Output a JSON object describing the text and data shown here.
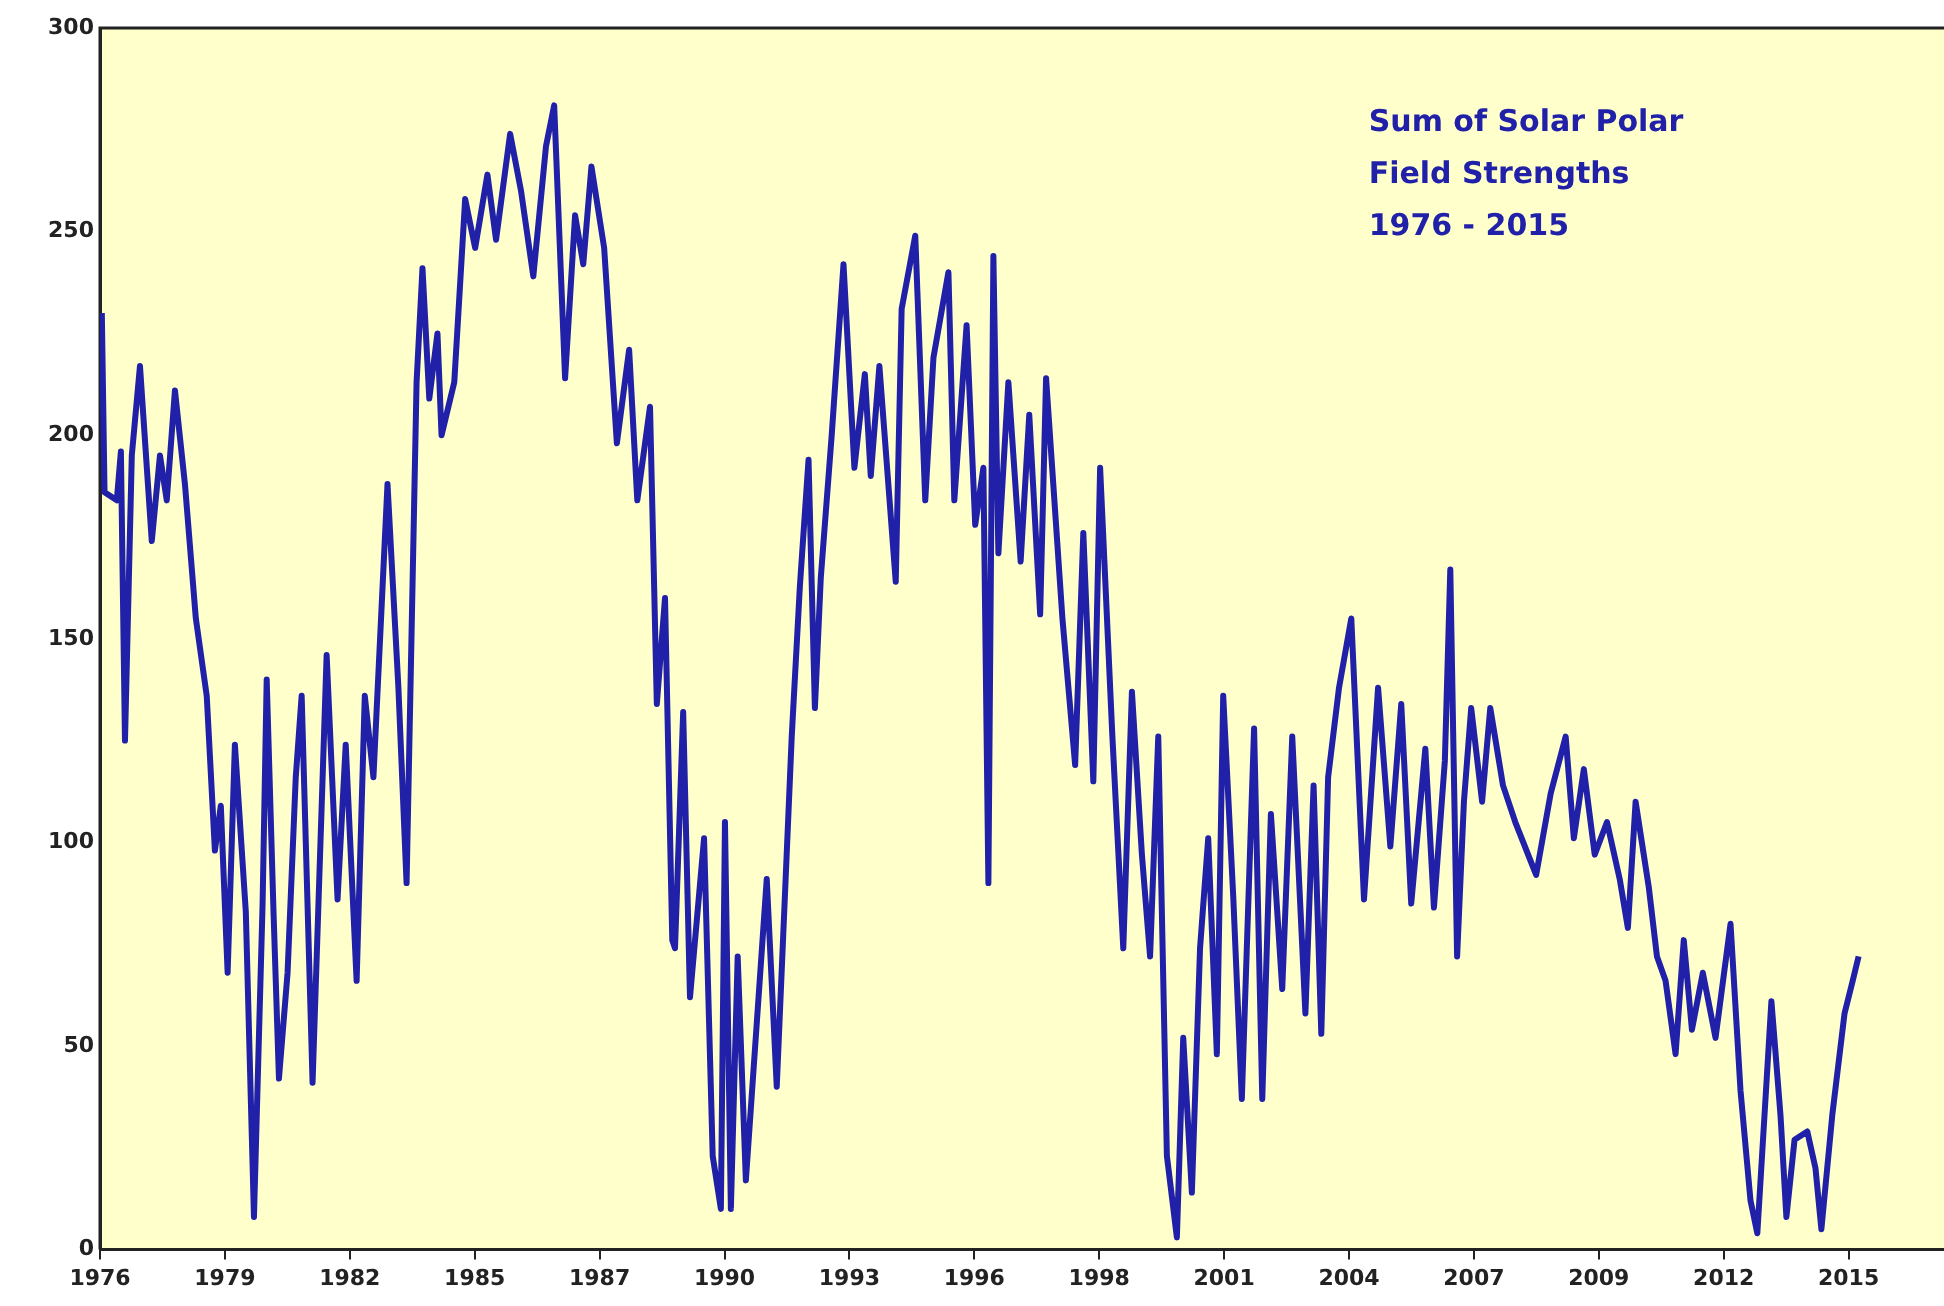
{
  "chart_data": {
    "type": "line",
    "title": "Sum of Solar Polar\nField Strengths\n1976 - 2015",
    "x": [
      1976.44,
      1976.5,
      1976.77,
      1976.86,
      1976.95,
      1977.1,
      1977.28,
      1977.54,
      1977.72,
      1977.87,
      1978.05,
      1978.27,
      1978.51,
      1978.75,
      1978.93,
      1979.06,
      1979.21,
      1979.37,
      1979.61,
      1979.79,
      1979.98,
      1980.07,
      1980.22,
      1980.34,
      1980.53,
      1980.71,
      1980.84,
      1981.08,
      1981.21,
      1981.39,
      1981.63,
      1981.81,
      1982.05,
      1982.23,
      1982.42,
      1982.73,
      1982.97,
      1983.15,
      1983.37,
      1983.5,
      1983.65,
      1983.83,
      1983.92,
      1984.2,
      1984.44,
      1984.66,
      1984.93,
      1985.12,
      1985.43,
      1985.67,
      1985.94,
      1986.22,
      1986.4,
      1986.64,
      1986.86,
      1987.04,
      1987.22,
      1987.5,
      1987.78,
      1988.05,
      1988.23,
      1988.51,
      1988.66,
      1988.84,
      1989.0,
      1989.06,
      1989.24,
      1989.39,
      1989.7,
      1989.89,
      1990.07,
      1990.16,
      1990.29,
      1990.44,
      1990.62,
      1990.9,
      1991.08,
      1991.3,
      1991.63,
      1991.81,
      1992.0,
      1992.14,
      1992.27,
      1992.51,
      1992.77,
      1993.01,
      1993.24,
      1993.37,
      1993.56,
      1993.92,
      1994.05,
      1994.35,
      1994.57,
      1994.75,
      1995.08,
      1995.21,
      1995.48,
      1995.67,
      1995.85,
      1995.96,
      1996.07,
      1996.18,
      1996.4,
      1996.67,
      1996.86,
      1997.1,
      1997.23,
      1997.59,
      1997.87,
      1998.05,
      1998.27,
      1998.42,
      1998.69,
      1998.93,
      1999.12,
      1999.34,
      1999.52,
      1999.7,
      1999.89,
      2000.11,
      2000.25,
      2000.44,
      2000.62,
      2000.8,
      2000.99,
      2001.13,
      2001.35,
      2001.54,
      2001.81,
      2001.99,
      2002.18,
      2002.43,
      2002.65,
      2002.94,
      2003.12,
      2003.29,
      2003.44,
      2003.68,
      2003.95,
      2004.23,
      2004.54,
      2004.81,
      2005.05,
      2005.27,
      2005.58,
      2005.77,
      2006.01,
      2006.13,
      2006.28,
      2006.43,
      2006.59,
      2006.83,
      2007.01,
      2007.29,
      2007.56,
      2008.02,
      2008.34,
      2008.67,
      2008.85,
      2009.07,
      2009.31,
      2009.58,
      2009.86,
      2010.04,
      2010.21,
      2010.5,
      2010.68,
      2010.87,
      2011.09,
      2011.27,
      2011.45,
      2011.69,
      2011.97,
      2012.3,
      2012.52,
      2012.74,
      2012.89,
      2013.2,
      2013.4,
      2013.53,
      2013.71,
      2013.99,
      2014.17,
      2014.3,
      2014.54,
      2014.81,
      2014.99,
      2015.12
    ],
    "series": [
      {
        "color": "#2020a8",
        "values": [
          230,
          186,
          184,
          196,
          125,
          195,
          217,
          174,
          195,
          184,
          211,
          188,
          155,
          136,
          98,
          109,
          68,
          124,
          83,
          8,
          85,
          140,
          83,
          42,
          68,
          116,
          136,
          41,
          85,
          146,
          86,
          124,
          66,
          136,
          116,
          188,
          138,
          90,
          213,
          241,
          209,
          225,
          200,
          213,
          258,
          246,
          264,
          248,
          274,
          260,
          239,
          271,
          281,
          214,
          254,
          242,
          266,
          246,
          198,
          221,
          184,
          207,
          134,
          160,
          76,
          74,
          132,
          62,
          101,
          23,
          10,
          105,
          10,
          72,
          17,
          62,
          91,
          40,
          126,
          163,
          194,
          133,
          165,
          200,
          242,
          192,
          215,
          190,
          217,
          164,
          231,
          249,
          184,
          219,
          240,
          184,
          227,
          178,
          192,
          90,
          244,
          171,
          213,
          169,
          205,
          156,
          214,
          155,
          119,
          176,
          115,
          192,
          126,
          74,
          137,
          97,
          72,
          126,
          23,
          3,
          52,
          14,
          74,
          101,
          48,
          136,
          87,
          37,
          128,
          37,
          107,
          64,
          126,
          58,
          114,
          53,
          116,
          138,
          155,
          86,
          138,
          99,
          134,
          85,
          123,
          84,
          120,
          167,
          72,
          110,
          133,
          110,
          133,
          114,
          105,
          92,
          112,
          126,
          101,
          118,
          97,
          105,
          91,
          79,
          110,
          89,
          72,
          66,
          48,
          76,
          54,
          68,
          52,
          80,
          39,
          12,
          4,
          61,
          33,
          8,
          27,
          29,
          20,
          5,
          33,
          58,
          66,
          72
        ]
      }
    ],
    "xlim": [
      1976.4,
      2017.0
    ],
    "xticks": [
      {
        "value": 1976.4,
        "label": "1976"
      },
      {
        "value": 1979.15,
        "label": "1979"
      },
      {
        "value": 1981.9,
        "label": "1982"
      },
      {
        "value": 1984.65,
        "label": "1985"
      },
      {
        "value": 1987.4,
        "label": "1987"
      },
      {
        "value": 1990.15,
        "label": "1990"
      },
      {
        "value": 1992.9,
        "label": "1993"
      },
      {
        "value": 1995.65,
        "label": "1996"
      },
      {
        "value": 1998.4,
        "label": "1998"
      },
      {
        "value": 2001.15,
        "label": "2001"
      },
      {
        "value": 2003.9,
        "label": "2004"
      },
      {
        "value": 2006.65,
        "label": "2007"
      },
      {
        "value": 2009.4,
        "label": "2009"
      },
      {
        "value": 2012.15,
        "label": "2012"
      },
      {
        "value": 2014.9,
        "label": "2015"
      }
    ],
    "ylim": [
      0,
      300
    ],
    "yticks": [
      0,
      50,
      100,
      150,
      200,
      250,
      300
    ],
    "grid": false,
    "legend": false,
    "marker": "none",
    "line_style": "solid"
  }
}
